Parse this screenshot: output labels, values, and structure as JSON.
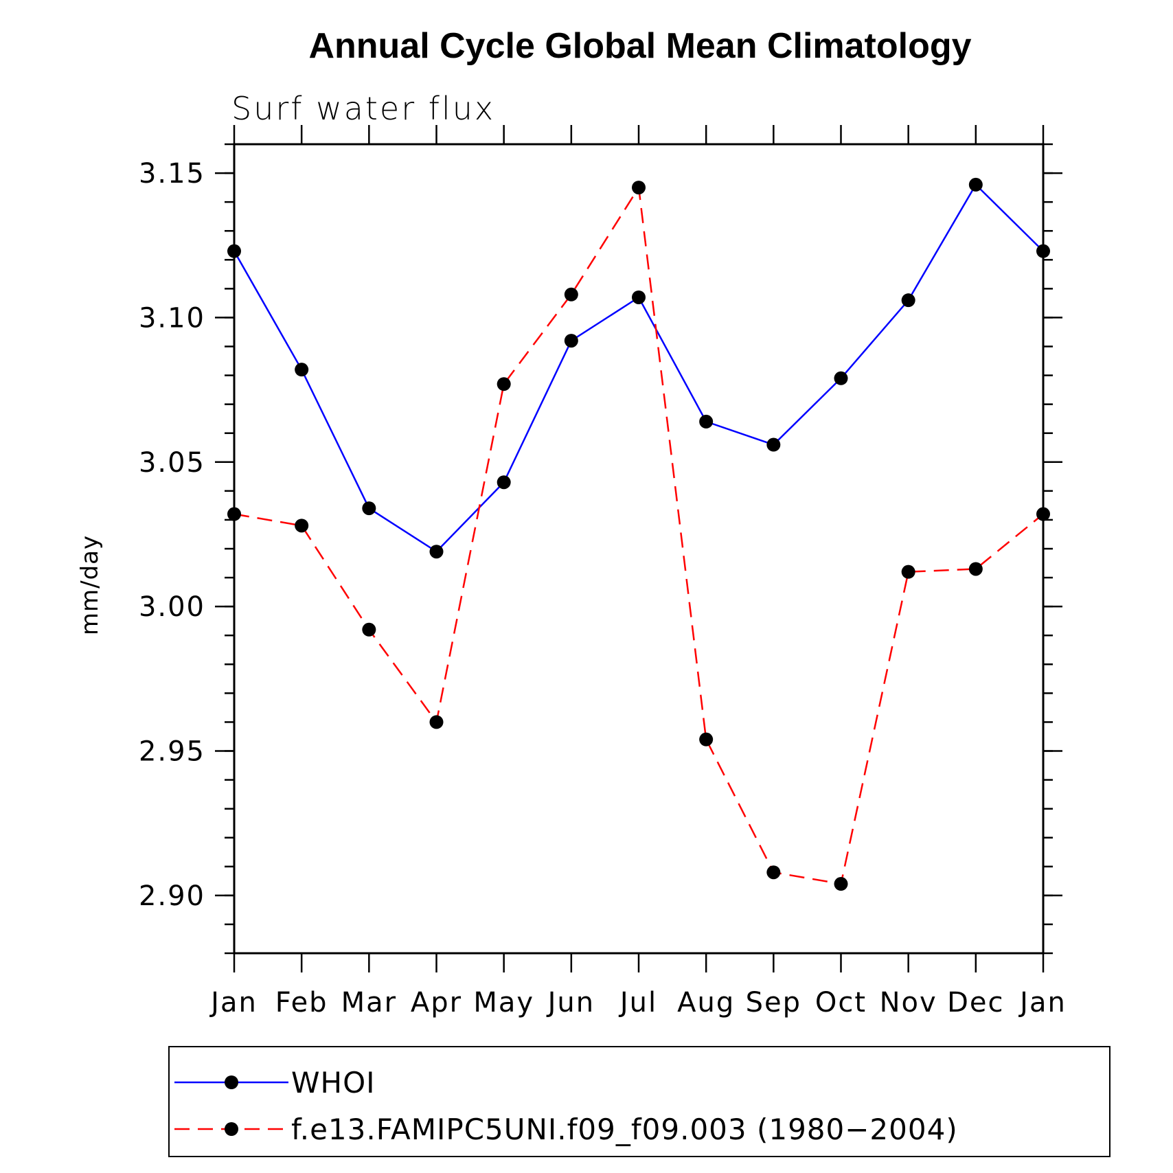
{
  "chart_data": {
    "type": "line",
    "title": "Annual Cycle Global Mean Climatology",
    "subtitle": "Surf water flux",
    "xlabel": "",
    "ylabel": "mm/day",
    "categories": [
      "Jan",
      "Feb",
      "Mar",
      "Apr",
      "May",
      "Jun",
      "Jul",
      "Aug",
      "Sep",
      "Oct",
      "Nov",
      "Dec",
      "Jan"
    ],
    "ylim": [
      2.88,
      3.16
    ],
    "yticks": [
      2.9,
      2.95,
      3.0,
      3.05,
      3.1,
      3.15
    ],
    "ytick_labels": [
      "2.90",
      "2.95",
      "3.00",
      "3.05",
      "3.10",
      "3.15"
    ],
    "series": [
      {
        "name": "WHOI",
        "color": "#0000ff",
        "style": "solid",
        "values": [
          3.123,
          3.082,
          3.034,
          3.019,
          3.043,
          3.092,
          3.107,
          3.064,
          3.056,
          3.079,
          3.106,
          3.146,
          3.123
        ]
      },
      {
        "name": "f.e13.FAMIPC5UNI.f09_f09.003 (1980−2004)",
        "color": "#ff0000",
        "style": "dashed",
        "values": [
          3.032,
          3.028,
          2.992,
          2.96,
          3.077,
          3.108,
          3.145,
          2.954,
          2.908,
          2.904,
          3.012,
          3.013,
          3.032
        ]
      }
    ],
    "legend": {
      "position": "bottom"
    },
    "grid": false
  }
}
